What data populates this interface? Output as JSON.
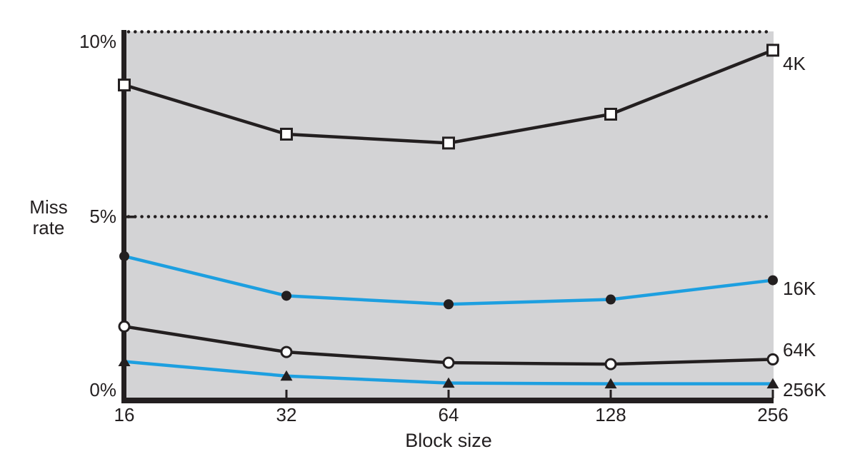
{
  "figure": {
    "background_color": "#ffffff",
    "plot_background_color": "#d3d3d5",
    "ink_color": "#231f20",
    "accent_color": "#1d9fe0"
  },
  "chart_data": {
    "type": "line",
    "title": "",
    "xlabel": "Block size",
    "ylabel": "Miss rate",
    "x_tick_labels": [
      "16",
      "32",
      "64",
      "128",
      "256"
    ],
    "x_values": [
      16,
      32,
      64,
      128,
      256
    ],
    "x_scale": "log2-categorical",
    "y_tick_labels": [
      "0%",
      "5%",
      "10%"
    ],
    "y_tick_values": [
      0,
      5,
      10
    ],
    "ylim": [
      0,
      10
    ],
    "y_unit": "%",
    "grid": {
      "style": "dotted",
      "at_values": [
        5,
        10
      ],
      "color": "#231f20"
    },
    "legend_position": "right-of-line-ends",
    "series": [
      {
        "name": "4K",
        "line_color": "#231f20",
        "marker": "open-square-icon",
        "values": [
          8.57,
          7.24,
          7.0,
          7.78,
          9.51
        ]
      },
      {
        "name": "16K",
        "line_color": "#1d9fe0",
        "marker": "filled-circle-icon",
        "values": [
          3.94,
          2.87,
          2.64,
          2.77,
          3.29
        ]
      },
      {
        "name": "64K",
        "line_color": "#231f20",
        "marker": "open-circle-icon",
        "values": [
          2.04,
          1.35,
          1.06,
          1.02,
          1.15
        ]
      },
      {
        "name": "256K",
        "line_color": "#1d9fe0",
        "marker": "filled-triangle-icon",
        "values": [
          1.09,
          0.7,
          0.51,
          0.49,
          0.49
        ]
      }
    ]
  }
}
